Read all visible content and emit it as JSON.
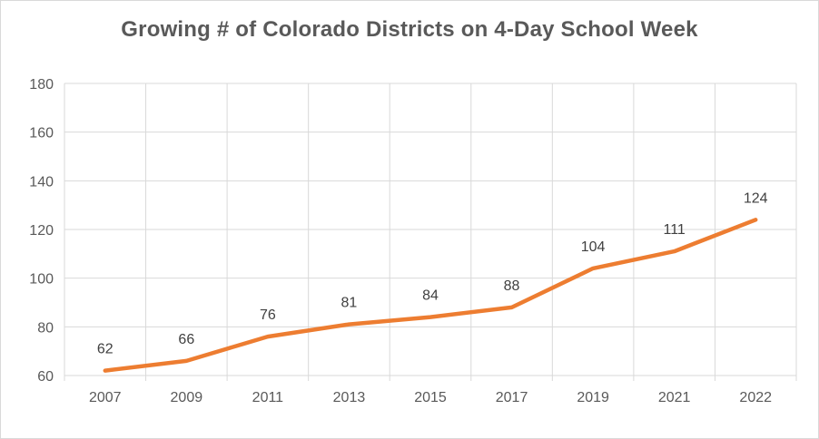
{
  "chart_data": {
    "type": "line",
    "title": "Growing # of Colorado Districts on 4-Day School Week",
    "xlabel": "",
    "ylabel": "",
    "categories": [
      "2007",
      "2009",
      "2011",
      "2013",
      "2015",
      "2017",
      "2019",
      "2021",
      "2022"
    ],
    "series": [
      {
        "values": [
          62,
          66,
          76,
          81,
          84,
          88,
          104,
          111,
          124
        ],
        "color": "#ED7D31"
      }
    ],
    "ylim": [
      60,
      180
    ],
    "yticks": [
      60,
      80,
      100,
      120,
      140,
      160,
      180
    ],
    "grid": true,
    "data_labels": true,
    "legend": "none"
  }
}
